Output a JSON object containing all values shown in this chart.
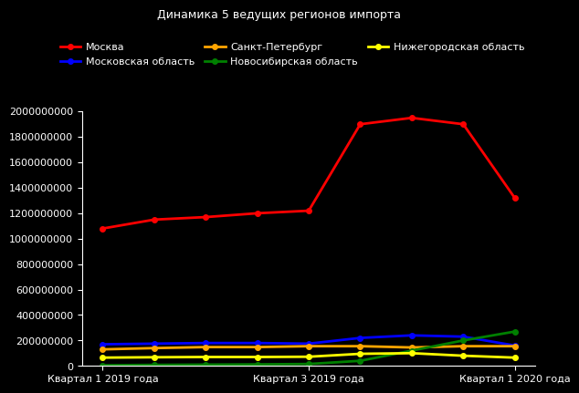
{
  "title": "Динамика 5 ведущих регионов импорта",
  "background_color": "#000000",
  "text_color": "#ffffff",
  "x_tick_labels": [
    "Квартал 1 2019 года",
    "Квартал 3 2019 года",
    "Квартал 1 2020 года"
  ],
  "x_tick_positions": [
    0,
    2,
    4
  ],
  "series": [
    {
      "name": "Москва",
      "color": "#ff0000",
      "values": [
        1080000000,
        1150000000,
        1170000000,
        1200000000,
        1220000000,
        1900000000,
        1950000000,
        1900000000,
        1320000000
      ],
      "x": [
        0,
        0.5,
        1,
        1.5,
        2,
        2.5,
        3,
        3.5,
        4
      ]
    },
    {
      "name": "Московская область",
      "color": "#0000ff",
      "values": [
        170000000,
        175000000,
        180000000,
        180000000,
        175000000,
        220000000,
        240000000,
        230000000,
        160000000
      ],
      "x": [
        0,
        0.5,
        1,
        1.5,
        2,
        2.5,
        3,
        3.5,
        4
      ]
    },
    {
      "name": "Санкт-Петербург",
      "color": "#ffa500",
      "values": [
        130000000,
        140000000,
        148000000,
        148000000,
        155000000,
        155000000,
        145000000,
        155000000,
        155000000
      ],
      "x": [
        0,
        0.5,
        1,
        1.5,
        2,
        2.5,
        3,
        3.5,
        4
      ]
    },
    {
      "name": "Новосибирская область",
      "color": "#008000",
      "values": [
        5000000,
        8000000,
        10000000,
        12000000,
        15000000,
        40000000,
        120000000,
        200000000,
        270000000
      ],
      "x": [
        0,
        0.5,
        1,
        1.5,
        2,
        2.5,
        3,
        3.5,
        4
      ]
    },
    {
      "name": "Нижегородская область",
      "color": "#ffff00",
      "values": [
        65000000,
        68000000,
        70000000,
        70000000,
        72000000,
        95000000,
        100000000,
        80000000,
        65000000
      ],
      "x": [
        0,
        0.5,
        1,
        1.5,
        2,
        2.5,
        3,
        3.5,
        4
      ]
    }
  ],
  "ylim": [
    0,
    2000000000
  ],
  "ytick_step": 200000000,
  "marker": "o",
  "markersize": 4,
  "linewidth": 2,
  "title_fontsize": 9,
  "legend_fontsize": 8,
  "tick_fontsize": 8
}
